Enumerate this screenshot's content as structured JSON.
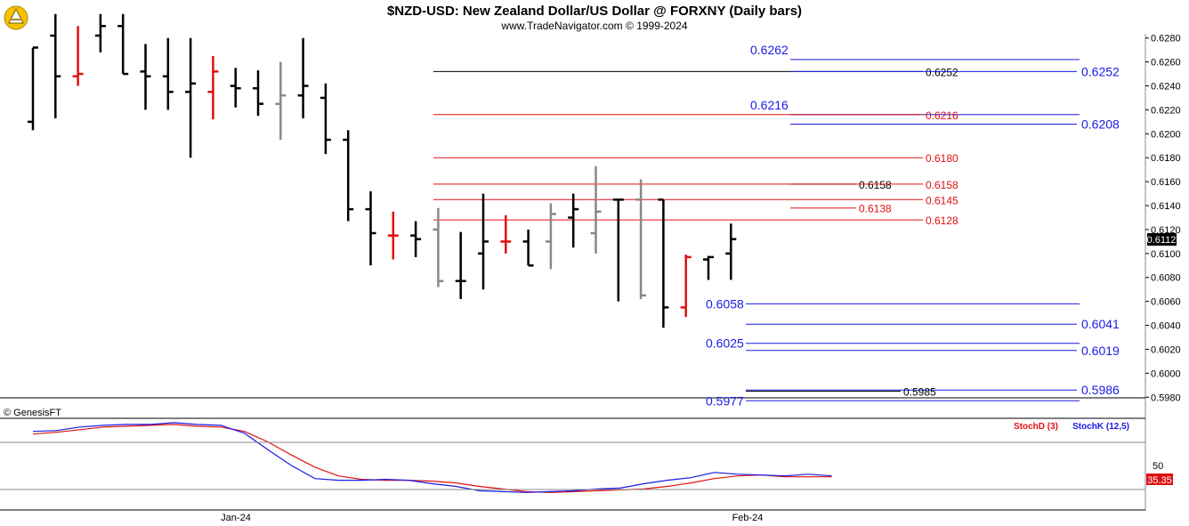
{
  "title": "$NZD-USD:  New Zealand Dollar/US Dollar @ FORXNY  (Daily bars)",
  "subtitle": "www.TradeNavigator.com © 1999-2024",
  "copyright": "© GenesisFT",
  "logo_icon": "genesis-logo-icon",
  "colors": {
    "up": "#000000",
    "down": "#e01010",
    "neutral": "#888888",
    "blue_level": "#1a1ae6",
    "red_level": "#e01010",
    "stoch_d": "#e01010",
    "stoch_k": "#1a1ae6"
  },
  "chart_data": [
    {
      "type": "ohlc",
      "title": "$NZD-USD:  New Zealand Dollar/US Dollar @ FORXNY  (Daily bars)",
      "ylim": [
        0.597,
        0.629
      ],
      "y_ticks": [
        "0.6280",
        "0.6260",
        "0.6240",
        "0.6220",
        "0.6200",
        "0.6180",
        "0.6160",
        "0.6140",
        "0.6120",
        "0.6100",
        "0.6080",
        "0.6060",
        "0.6040",
        "0.6020",
        "0.6000",
        "0.5980"
      ],
      "last_price": "0.6112",
      "x_ticks": [
        "Jan-24",
        "Feb-24"
      ],
      "bars": [
        {
          "o": 0.621,
          "h": 0.6272,
          "l": 0.6203,
          "c": 0.6272,
          "color": "up"
        },
        {
          "o": 0.6282,
          "h": 0.63,
          "l": 0.6213,
          "c": 0.6248,
          "color": "up"
        },
        {
          "o": 0.6248,
          "h": 0.629,
          "l": 0.624,
          "c": 0.625,
          "color": "down"
        },
        {
          "o": 0.6282,
          "h": 0.63,
          "l": 0.6268,
          "c": 0.629,
          "color": "up"
        },
        {
          "o": 0.629,
          "h": 0.63,
          "l": 0.625,
          "c": 0.625,
          "color": "up"
        },
        {
          "o": 0.6252,
          "h": 0.6275,
          "l": 0.622,
          "c": 0.6248,
          "color": "up"
        },
        {
          "o": 0.6248,
          "h": 0.628,
          "l": 0.622,
          "c": 0.6235,
          "color": "up"
        },
        {
          "o": 0.6235,
          "h": 0.628,
          "l": 0.618,
          "c": 0.6242,
          "color": "up"
        },
        {
          "o": 0.6235,
          "h": 0.6265,
          "l": 0.6212,
          "c": 0.6252,
          "color": "down"
        },
        {
          "o": 0.624,
          "h": 0.6255,
          "l": 0.6222,
          "c": 0.6238,
          "color": "up"
        },
        {
          "o": 0.6238,
          "h": 0.6253,
          "l": 0.6215,
          "c": 0.6225,
          "color": "up"
        },
        {
          "o": 0.6225,
          "h": 0.626,
          "l": 0.6195,
          "c": 0.6232,
          "color": "neutral"
        },
        {
          "o": 0.6232,
          "h": 0.628,
          "l": 0.6213,
          "c": 0.624,
          "color": "up"
        },
        {
          "o": 0.623,
          "h": 0.6242,
          "l": 0.6183,
          "c": 0.6195,
          "color": "up"
        },
        {
          "o": 0.6195,
          "h": 0.6203,
          "l": 0.6127,
          "c": 0.6137,
          "color": "up"
        },
        {
          "o": 0.6137,
          "h": 0.6152,
          "l": 0.609,
          "c": 0.6117,
          "color": "up"
        },
        {
          "o": 0.6115,
          "h": 0.6135,
          "l": 0.6095,
          "c": 0.6115,
          "color": "down"
        },
        {
          "o": 0.6115,
          "h": 0.6127,
          "l": 0.6097,
          "c": 0.6112,
          "color": "up"
        },
        {
          "o": 0.612,
          "h": 0.6138,
          "l": 0.6072,
          "c": 0.6077,
          "color": "neutral"
        },
        {
          "o": 0.6077,
          "h": 0.6118,
          "l": 0.6062,
          "c": 0.6077,
          "color": "up"
        },
        {
          "o": 0.61,
          "h": 0.615,
          "l": 0.607,
          "c": 0.611,
          "color": "up"
        },
        {
          "o": 0.611,
          "h": 0.6132,
          "l": 0.61,
          "c": 0.611,
          "color": "down"
        },
        {
          "o": 0.611,
          "h": 0.612,
          "l": 0.609,
          "c": 0.609,
          "color": "up"
        },
        {
          "o": 0.611,
          "h": 0.6142,
          "l": 0.6087,
          "c": 0.6133,
          "color": "neutral"
        },
        {
          "o": 0.613,
          "h": 0.615,
          "l": 0.6105,
          "c": 0.6137,
          "color": "up"
        },
        {
          "o": 0.6117,
          "h": 0.6173,
          "l": 0.61,
          "c": 0.6135,
          "color": "neutral"
        },
        {
          "o": 0.6145,
          "h": 0.6145,
          "l": 0.606,
          "c": 0.6145,
          "color": "up"
        },
        {
          "o": 0.6145,
          "h": 0.6162,
          "l": 0.6062,
          "c": 0.6065,
          "color": "neutral"
        },
        {
          "o": 0.6145,
          "h": 0.6145,
          "l": 0.6038,
          "c": 0.6055,
          "color": "up"
        },
        {
          "o": 0.6055,
          "h": 0.6099,
          "l": 0.6047,
          "c": 0.6097,
          "color": "down"
        },
        {
          "o": 0.6095,
          "h": 0.6098,
          "l": 0.6078,
          "c": 0.6097,
          "color": "up"
        },
        {
          "o": 0.61,
          "h": 0.6125,
          "l": 0.6078,
          "c": 0.6112,
          "color": "up"
        }
      ],
      "levels": [
        {
          "value": 0.6262,
          "label": "0.6262",
          "color": "blue",
          "style": "big"
        },
        {
          "value": 0.6252,
          "label": "0.6252",
          "color": "black",
          "style": "small"
        },
        {
          "value": 0.6252,
          "label": "0.6252",
          "color": "blue",
          "style": "big"
        },
        {
          "value": 0.6216,
          "label": "0.6216",
          "color": "blue",
          "style": "big"
        },
        {
          "value": 0.6216,
          "label": "0.6216",
          "color": "red",
          "style": "small"
        },
        {
          "value": 0.6208,
          "label": "0.6208",
          "color": "blue",
          "style": "big"
        },
        {
          "value": 0.618,
          "label": "0.6180",
          "color": "red",
          "style": "small"
        },
        {
          "value": 0.6158,
          "label": "0.6158",
          "color": "black",
          "style": "small"
        },
        {
          "value": 0.6158,
          "label": "0.6158",
          "color": "red",
          "style": "small"
        },
        {
          "value": 0.6145,
          "label": "0.6145",
          "color": "red",
          "style": "small"
        },
        {
          "value": 0.6138,
          "label": "0.6138",
          "color": "red",
          "style": "small"
        },
        {
          "value": 0.6128,
          "label": "0.6128",
          "color": "red",
          "style": "small"
        },
        {
          "value": 0.6058,
          "label": "0.6058",
          "color": "blue",
          "style": "big"
        },
        {
          "value": 0.6041,
          "label": "0.6041",
          "color": "blue",
          "style": "big"
        },
        {
          "value": 0.6025,
          "label": "0.6025",
          "color": "blue",
          "style": "big"
        },
        {
          "value": 0.6019,
          "label": "0.6019",
          "color": "blue",
          "style": "big"
        },
        {
          "value": 0.5986,
          "label": "0.5986",
          "color": "blue",
          "style": "big"
        },
        {
          "value": 0.5985,
          "label": "0.5985",
          "color": "black",
          "style": "small"
        },
        {
          "value": 0.5977,
          "label": "0.5977",
          "color": "blue",
          "style": "big"
        }
      ]
    },
    {
      "type": "line",
      "legend": [
        "StochD (3)",
        "StochK (12,5)"
      ],
      "ylim": [
        0,
        100
      ],
      "y_ticks": [
        "50"
      ],
      "last_value": "35.35",
      "series": [
        {
          "name": "StochD (3)",
          "color": "red",
          "values": [
            [
              0,
              84
            ],
            [
              1,
              86
            ],
            [
              2,
              89
            ],
            [
              3,
              92
            ],
            [
              4,
              93
            ],
            [
              5,
              94
            ],
            [
              6,
              95
            ],
            [
              7,
              93
            ],
            [
              8,
              92
            ],
            [
              9,
              87
            ],
            [
              10,
              75
            ],
            [
              11,
              60
            ],
            [
              12,
              46
            ],
            [
              13,
              36
            ],
            [
              14,
              32
            ],
            [
              15,
              31
            ],
            [
              16,
              31
            ],
            [
              17,
              30
            ],
            [
              18,
              28
            ],
            [
              19,
              24
            ],
            [
              20,
              21
            ],
            [
              21,
              18
            ],
            [
              22,
              17
            ],
            [
              23,
              18
            ],
            [
              24,
              19
            ],
            [
              25,
              20
            ],
            [
              26,
              21
            ],
            [
              27,
              24
            ],
            [
              28,
              28
            ],
            [
              29,
              33
            ],
            [
              30,
              36
            ],
            [
              31,
              37
            ],
            [
              32,
              35
            ],
            [
              33,
              35
            ],
            [
              34,
              35
            ]
          ]
        },
        {
          "name": "StochK (12,5)",
          "color": "blue",
          "values": [
            [
              0,
              87
            ],
            [
              1,
              88
            ],
            [
              2,
              92
            ],
            [
              3,
              94
            ],
            [
              4,
              95
            ],
            [
              5,
              95
            ],
            [
              6,
              97
            ],
            [
              7,
              95
            ],
            [
              8,
              94
            ],
            [
              9,
              85
            ],
            [
              10,
              66
            ],
            [
              11,
              48
            ],
            [
              12,
              33
            ],
            [
              13,
              31
            ],
            [
              14,
              31
            ],
            [
              15,
              32
            ],
            [
              16,
              31
            ],
            [
              17,
              27
            ],
            [
              18,
              24
            ],
            [
              19,
              19
            ],
            [
              20,
              18
            ],
            [
              21,
              17
            ],
            [
              22,
              18
            ],
            [
              23,
              19
            ],
            [
              24,
              21
            ],
            [
              25,
              22
            ],
            [
              26,
              27
            ],
            [
              27,
              31
            ],
            [
              28,
              34
            ],
            [
              29,
              40
            ],
            [
              30,
              38
            ],
            [
              31,
              37
            ],
            [
              32,
              36
            ],
            [
              33,
              38
            ],
            [
              34,
              36
            ]
          ]
        }
      ]
    }
  ]
}
